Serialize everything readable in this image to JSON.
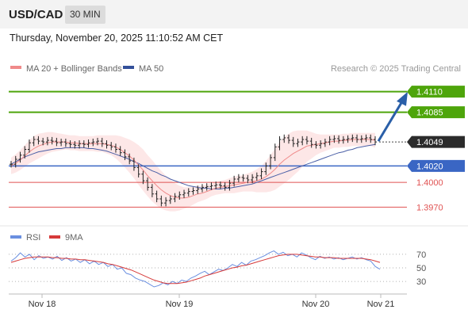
{
  "header": {
    "pair": "USD/CAD",
    "timeframe": "30 MIN",
    "datetime": "Thursday, November 20, 2025 11:10:52 AM CET"
  },
  "legend": {
    "ma20": "MA 20 + Bollinger Bands",
    "ma50": "MA 50",
    "credit": "Research © 2025 Trading Central",
    "rsi": "RSI",
    "rsi_ma": "9MA"
  },
  "colors": {
    "up_line": "#4ea50b",
    "target_badge": "#4ea50b",
    "pivot_blue": "#3a66c4",
    "support_red": "#e05252",
    "current_badge": "#2b2b2b",
    "arrow": "#2a5fa8",
    "ma20": "#f08a8a",
    "ma50": "#4a5fa6",
    "bollinger_fill": "#fde3e3",
    "rsi": "#6a8fe0",
    "rsi_ma": "#d63a3a"
  },
  "chart_data": {
    "type": "line",
    "price_min": 1.3955,
    "price_max": 1.4125,
    "levels": [
      {
        "value": 1.411,
        "label": "1.4110",
        "kind": "resistance"
      },
      {
        "value": 1.4085,
        "label": "1.4085",
        "kind": "resistance"
      },
      {
        "value": 1.4049,
        "label": "1.4049",
        "kind": "current"
      },
      {
        "value": 1.402,
        "label": "1.4020",
        "kind": "pivot"
      },
      {
        "value": 1.4,
        "label": "1.4000",
        "kind": "support"
      },
      {
        "value": 1.397,
        "label": "1.3970",
        "kind": "support"
      }
    ],
    "x_ticks": [
      "Nov 18",
      "Nov 19",
      "Nov 20",
      "Nov 21"
    ],
    "price_series": [
      1.4022,
      1.4028,
      1.4033,
      1.404,
      1.4048,
      1.4052,
      1.405,
      1.4049,
      1.4051,
      1.405,
      1.4048,
      1.4049,
      1.4047,
      1.4046,
      1.4045,
      1.4047,
      1.4046,
      1.4048,
      1.4049,
      1.405,
      1.4047,
      1.4045,
      1.4043,
      1.404,
      1.4036,
      1.4031,
      1.4026,
      1.4018,
      1.401,
      1.4002,
      1.3994,
      1.3986,
      1.398,
      1.3975,
      1.3978,
      1.398,
      1.3983,
      1.3985,
      1.3987,
      1.3989,
      1.399,
      1.3992,
      1.3994,
      1.3995,
      1.3996,
      1.3997,
      1.3996,
      1.3994,
      1.3999,
      1.4004,
      1.4006,
      1.4005,
      1.4003,
      1.4006,
      1.4008,
      1.4013,
      1.402,
      1.403,
      1.4043,
      1.4052,
      1.4054,
      1.4051,
      1.4047,
      1.4049,
      1.4052,
      1.405,
      1.4046,
      1.4045,
      1.4047,
      1.4049,
      1.4052,
      1.4053,
      1.4051,
      1.4052,
      1.4053,
      1.4054,
      1.4052,
      1.4053,
      1.4054,
      1.4052,
      1.4049
    ],
    "ma20_series": [
      1.402,
      1.4023,
      1.4027,
      1.4032,
      1.4037,
      1.4041,
      1.4044,
      1.4046,
      1.4048,
      1.4049,
      1.4049,
      1.4049,
      1.4049,
      1.4048,
      1.4048,
      1.4047,
      1.4047,
      1.4047,
      1.4047,
      1.4047,
      1.4047,
      1.4046,
      1.4045,
      1.4043,
      1.404,
      1.4036,
      1.4032,
      1.4027,
      1.4021,
      1.4015,
      1.4008,
      1.4002,
      1.3996,
      1.3991,
      1.3987,
      1.3984,
      1.3982,
      1.3981,
      1.3981,
      1.3982,
      1.3984,
      1.3986,
      1.3987,
      1.3989,
      1.3991,
      1.3993,
      1.3994,
      1.3995,
      1.3996,
      1.3997,
      1.3998,
      1.3999,
      1.4,
      1.4001,
      1.4002,
      1.4004,
      1.4007,
      1.4011,
      1.4016,
      1.4022,
      1.4027,
      1.4031,
      1.4035,
      1.4038,
      1.4041,
      1.4044,
      1.4045,
      1.4046,
      1.4047,
      1.4048,
      1.4049,
      1.405,
      1.405,
      1.4051,
      1.4051,
      1.4052,
      1.4052,
      1.4052,
      1.4052,
      1.4052,
      1.4051
    ],
    "bb_width": [
      0.001,
      0.0011,
      0.0012,
      0.0013,
      0.0014,
      0.0015,
      0.0015,
      0.0014,
      0.0013,
      0.0012,
      0.0011,
      0.001,
      0.0009,
      0.0009,
      0.0009,
      0.0009,
      0.0009,
      0.0009,
      0.0009,
      0.001,
      0.001,
      0.0011,
      0.0012,
      0.0014,
      0.0016,
      0.0018,
      0.002,
      0.0022,
      0.0024,
      0.0025,
      0.0025,
      0.0025,
      0.0024,
      0.0023,
      0.0021,
      0.0019,
      0.0017,
      0.0015,
      0.0013,
      0.0012,
      0.0011,
      0.001,
      0.0009,
      0.0009,
      0.0008,
      0.0008,
      0.0008,
      0.0008,
      0.0009,
      0.001,
      0.001,
      0.001,
      0.0011,
      0.0012,
      0.0014,
      0.0016,
      0.0019,
      0.0022,
      0.0025,
      0.0027,
      0.0028,
      0.0028,
      0.0027,
      0.0025,
      0.0022,
      0.0019,
      0.0016,
      0.0013,
      0.0011,
      0.001,
      0.0009,
      0.0008,
      0.0008,
      0.0008,
      0.0008,
      0.0008,
      0.0008,
      0.0008,
      0.0008,
      0.0008,
      0.0009
    ],
    "ma50_series": [
      1.4022,
      1.4025,
      1.4028,
      1.4031,
      1.4033,
      1.4035,
      1.4037,
      1.4038,
      1.4039,
      1.404,
      1.4041,
      1.4041,
      1.4042,
      1.4042,
      1.4042,
      1.4042,
      1.4042,
      1.4041,
      1.4041,
      1.404,
      1.4039,
      1.4038,
      1.4036,
      1.4034,
      1.4032,
      1.403,
      1.4028,
      1.4025,
      1.4023,
      1.402,
      1.4017,
      1.4014,
      1.4012,
      1.4009,
      1.4007,
      1.4004,
      1.4002,
      1.4,
      1.3998,
      1.3996,
      1.3995,
      1.3994,
      1.3993,
      1.3993,
      1.3992,
      1.3992,
      1.3992,
      1.3993,
      1.3993,
      1.3994,
      1.3995,
      1.3996,
      1.3997,
      1.3998,
      1.4,
      1.4002,
      1.4004,
      1.4006,
      1.4008,
      1.401,
      1.4012,
      1.4014,
      1.4016,
      1.4018,
      1.402,
      1.4022,
      1.4024,
      1.4026,
      1.4028,
      1.403,
      1.4032,
      1.4034,
      1.4036,
      1.4037,
      1.4039,
      1.404,
      1.4042,
      1.4043,
      1.4044,
      1.4045,
      1.4046
    ],
    "arrow_from": 1.405,
    "arrow_to": 1.4108,
    "rsi": {
      "ticks": [
        70,
        50,
        30
      ],
      "min": 15,
      "max": 85,
      "rsi_series": [
        60,
        65,
        72,
        66,
        70,
        62,
        68,
        64,
        66,
        63,
        67,
        61,
        65,
        60,
        63,
        58,
        62,
        56,
        60,
        55,
        58,
        52,
        55,
        48,
        50,
        42,
        40,
        35,
        32,
        30,
        26,
        22,
        24,
        28,
        25,
        30,
        27,
        32,
        30,
        35,
        38,
        42,
        45,
        40,
        44,
        48,
        46,
        50,
        55,
        52,
        58,
        54,
        60,
        62,
        65,
        68,
        72,
        75,
        70,
        73,
        68,
        70,
        66,
        72,
        69,
        65,
        62,
        67,
        64,
        66,
        63,
        65,
        62,
        64,
        66,
        63,
        65,
        62,
        60,
        52,
        48
      ],
      "rsi_ma_series": [
        58,
        60,
        62,
        64,
        65,
        66,
        66,
        66,
        66,
        65,
        65,
        64,
        64,
        63,
        63,
        62,
        62,
        61,
        60,
        59,
        58,
        56,
        55,
        53,
        51,
        49,
        47,
        44,
        41,
        38,
        35,
        32,
        30,
        28,
        27,
        27,
        27,
        28,
        29,
        31,
        33,
        35,
        38,
        40,
        42,
        44,
        46,
        48,
        50,
        51,
        53,
        54,
        56,
        58,
        60,
        62,
        64,
        66,
        68,
        69,
        70,
        70,
        70,
        69,
        68,
        67,
        66,
        66,
        65,
        65,
        65,
        64,
        64,
        64,
        64,
        64,
        64,
        63,
        62,
        60,
        58
      ]
    }
  }
}
